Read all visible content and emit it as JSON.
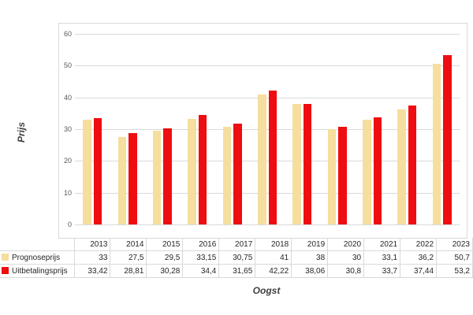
{
  "chart_data": {
    "type": "bar",
    "title": "",
    "xlabel": "Oogst",
    "ylabel": "Prijs",
    "ylim": [
      0,
      60
    ],
    "ytick_step": 10,
    "yticks": [
      "0",
      "10",
      "20",
      "30",
      "40",
      "50",
      "60"
    ],
    "grid": true,
    "legend_position": "data-table-left",
    "categories": [
      "2013",
      "2014",
      "2015",
      "2016",
      "2017",
      "2018",
      "2019",
      "2020",
      "2021",
      "2022",
      "2023"
    ],
    "series": [
      {
        "name": "Prognoseprijs",
        "color": "#F5DE9E",
        "values": [
          33,
          27.5,
          29.5,
          33.15,
          30.75,
          41,
          38,
          30,
          33.1,
          36.2,
          50.7
        ],
        "values_display": [
          "33",
          "27,5",
          "29,5",
          "33,15",
          "30,75",
          "41",
          "38",
          "30",
          "33,1",
          "36,2",
          "50,7"
        ]
      },
      {
        "name": "Uitbetalingsprijs",
        "color": "#EE0D10",
        "values": [
          33.42,
          28.81,
          30.28,
          34.4,
          31.65,
          42.22,
          38.06,
          30.8,
          33.7,
          37.44,
          53.2
        ],
        "values_display": [
          "33,42",
          "28,81",
          "30,28",
          "34,4",
          "31,65",
          "42,22",
          "38,06",
          "30,8",
          "33,7",
          "37,44",
          "53,2"
        ]
      }
    ]
  },
  "colors": {
    "gridline": "#d9d9d9",
    "chart_border": "#d9d9d9",
    "tick_text": "#595959",
    "table_text": "#262626",
    "axis_title_text": "#3f3f3f",
    "background": "#ffffff"
  }
}
